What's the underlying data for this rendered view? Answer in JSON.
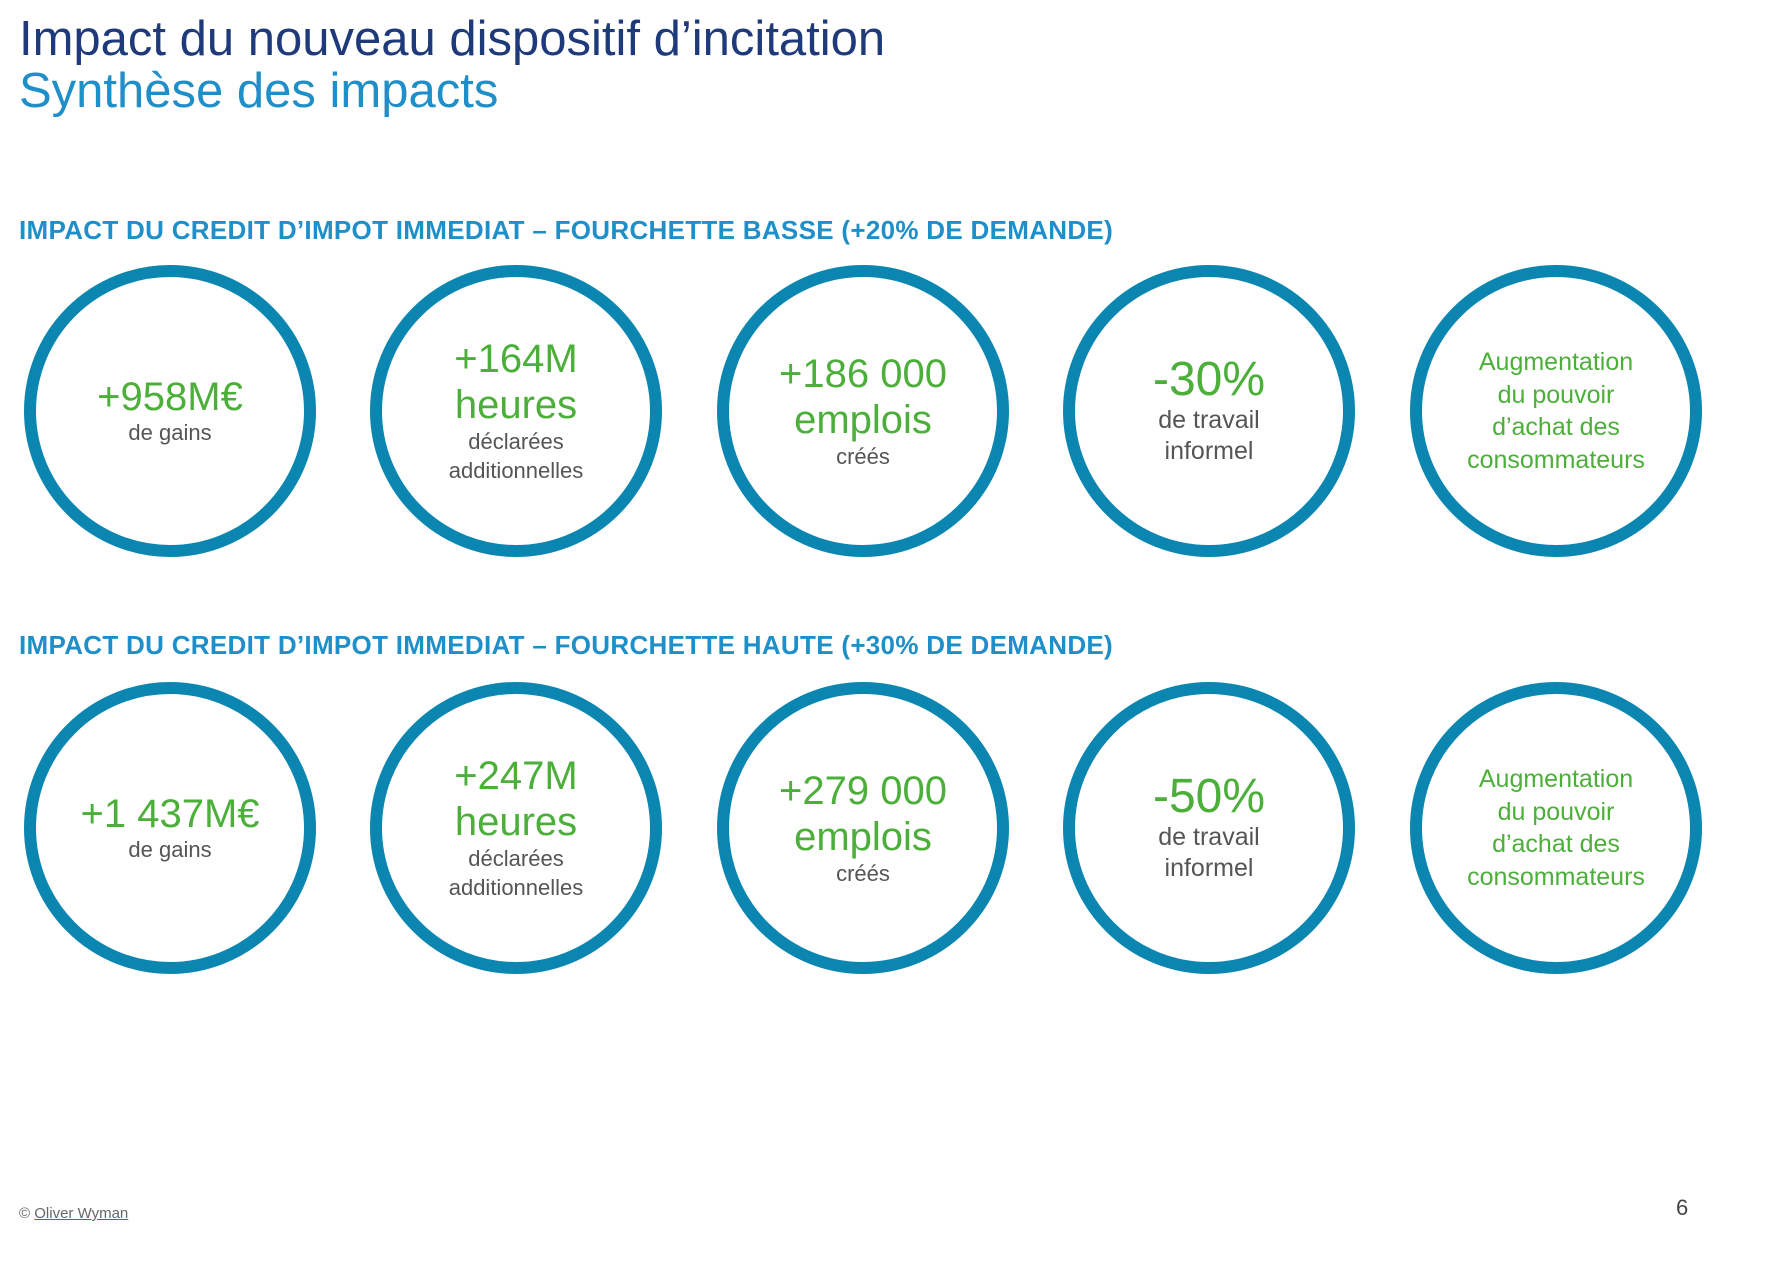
{
  "header": {
    "title": "Impact du nouveau dispositif d’incitation",
    "subtitle": "Synthèse des impacts"
  },
  "sections": [
    {
      "heading": "IMPACT DU CREDIT D’IMPOT IMMEDIAT – FOURCHETTE BASSE (+20% DE DEMANDE)",
      "gains": {
        "value": "+958M€",
        "label": "de gains"
      },
      "hours": {
        "value": "+164M",
        "unit": "heures",
        "label_1": "déclarées",
        "label_2": "additionnelles"
      },
      "jobs": {
        "value": "+186 000",
        "unit": "emplois",
        "label": "créés"
      },
      "informal": {
        "value": "-30%",
        "label_1": "de travail",
        "label_2": "informel"
      },
      "power": {
        "line_1": "Augmentation",
        "line_2": "du pouvoir",
        "line_3": "d’achat des",
        "line_4": "consommateurs"
      }
    },
    {
      "heading": "IMPACT DU CREDIT D’IMPOT IMMEDIAT – FOURCHETTE HAUTE (+30% DE DEMANDE)",
      "gains": {
        "value": "+1 437M€",
        "label": "de gains"
      },
      "hours": {
        "value": "+247M",
        "unit": "heures",
        "label_1": "déclarées",
        "label_2": "additionnelles"
      },
      "jobs": {
        "value": "+279 000",
        "unit": "emplois",
        "label": "créés"
      },
      "informal": {
        "value": "-50%",
        "label_1": "de travail",
        "label_2": "informel"
      },
      "power": {
        "line_1": "Augmentation",
        "line_2": "du pouvoir",
        "line_3": "d’achat des",
        "line_4": "consommateurs"
      }
    }
  ],
  "footer": {
    "copyright_symbol": "©",
    "brand": "Oliver Wyman",
    "page_number": "6"
  },
  "colors": {
    "title": "#1f3a7a",
    "accent_blue": "#1e8fc8",
    "ring": "#0a86b0",
    "value_green": "#4caf3a"
  }
}
